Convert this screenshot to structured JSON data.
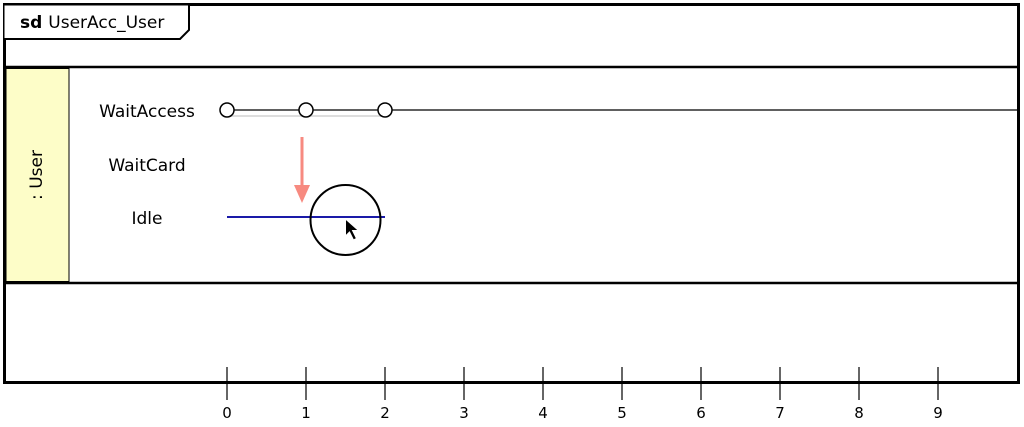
{
  "frame": {
    "keyword": "sd",
    "name": "UserAcc_User"
  },
  "lifeline": {
    "name": ": User",
    "fill_color": "#fdfdc8"
  },
  "states": [
    "WaitAccess",
    "WaitCard",
    "Idle"
  ],
  "timeline": {
    "ticks": [
      "0",
      "1",
      "2",
      "3",
      "4",
      "5",
      "6",
      "7",
      "8",
      "9"
    ],
    "waitaccess_points": [
      0,
      1,
      2
    ],
    "idle_segment": [
      0,
      2
    ],
    "idle_color": "#1a1aa8",
    "transition_arrow": {
      "at": 1,
      "from": "WaitAccess",
      "to": "Idle",
      "color": "#f78a80"
    }
  },
  "cursor_highlight": {
    "at": 1.5,
    "state": "Idle"
  }
}
